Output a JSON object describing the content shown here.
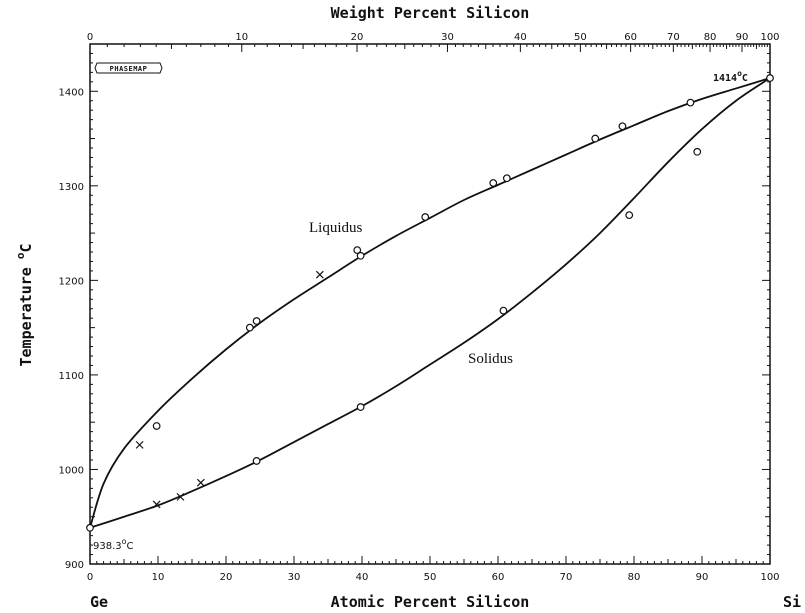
{
  "chart_data": {
    "type": "line",
    "top_axis": {
      "label": "Weight Percent Silicon",
      "ticks": [
        0,
        10,
        20,
        30,
        40,
        50,
        60,
        70,
        80,
        90,
        100
      ],
      "tick_labels": [
        "0",
        "10",
        "20",
        "30",
        "40",
        "50",
        "60",
        "70",
        "80",
        "90",
        "100"
      ]
    },
    "xlabel": "Atomic Percent Silicon",
    "xlim": [
      0,
      100
    ],
    "x_ticks": [
      0,
      10,
      20,
      30,
      40,
      50,
      60,
      70,
      80,
      90,
      100
    ],
    "x_tick_labels": [
      "0",
      "10",
      "20",
      "30",
      "40",
      "50",
      "60",
      "70",
      "80",
      "90",
      "100"
    ],
    "x_end_labels": {
      "left": "Ge",
      "right": "Si"
    },
    "ylabel": "Temperature",
    "ylabel_unit": "C",
    "ylabel_degree": "o",
    "ylim": [
      900,
      1450
    ],
    "y_ticks": [
      900,
      1000,
      1100,
      1200,
      1300,
      1400
    ],
    "y_tick_labels": [
      "900",
      "1000",
      "1100",
      "1200",
      "1300",
      "1400"
    ],
    "grid": false,
    "logo_text": "PHASEMAP",
    "series": [
      {
        "name": "Liquidus",
        "x": [
          0,
          2,
          5,
          10,
          15,
          20,
          25,
          30,
          35,
          40,
          45,
          50,
          55,
          60,
          65,
          70,
          75,
          80,
          85,
          90,
          95,
          100
        ],
        "y": [
          938.3,
          985,
          1022,
          1062,
          1096,
          1127,
          1155,
          1180,
          1203,
          1226,
          1247,
          1266,
          1285,
          1301,
          1317,
          1333,
          1349,
          1364,
          1379,
          1392,
          1403,
          1414
        ]
      },
      {
        "name": "Solidus",
        "x": [
          0,
          5,
          10,
          15,
          20,
          25,
          30,
          35,
          40,
          45,
          50,
          55,
          60,
          65,
          70,
          75,
          80,
          85,
          90,
          95,
          100
        ],
        "y": [
          938.3,
          950,
          962,
          977,
          993,
          1010,
          1029,
          1048,
          1067,
          1088,
          1111,
          1134,
          1159,
          1187,
          1217,
          1250,
          1287,
          1325,
          1360,
          1390,
          1414
        ]
      }
    ],
    "points": {
      "circles": [
        {
          "x": 0,
          "y": 938.3
        },
        {
          "x": 9.8,
          "y": 1046
        },
        {
          "x": 23.5,
          "y": 1150
        },
        {
          "x": 24.5,
          "y": 1157
        },
        {
          "x": 39.3,
          "y": 1232
        },
        {
          "x": 39.8,
          "y": 1226
        },
        {
          "x": 49.3,
          "y": 1267
        },
        {
          "x": 59.3,
          "y": 1303
        },
        {
          "x": 61.3,
          "y": 1308
        },
        {
          "x": 74.3,
          "y": 1350
        },
        {
          "x": 78.3,
          "y": 1363
        },
        {
          "x": 88.3,
          "y": 1388
        },
        {
          "x": 100,
          "y": 1414
        },
        {
          "x": 24.5,
          "y": 1009
        },
        {
          "x": 39.8,
          "y": 1066
        },
        {
          "x": 60.8,
          "y": 1168
        },
        {
          "x": 79.3,
          "y": 1269
        },
        {
          "x": 89.3,
          "y": 1336
        }
      ],
      "crosses": [
        {
          "x": 7.3,
          "y": 1026
        },
        {
          "x": 33.8,
          "y": 1206
        },
        {
          "x": 9.8,
          "y": 963
        },
        {
          "x": 13.3,
          "y": 971
        },
        {
          "x": 16.3,
          "y": 986
        }
      ]
    },
    "annotations": {
      "liquidus": "Liquidus",
      "solidus": "Solidus",
      "ge_melt": "938.3",
      "si_melt": "1414",
      "deg_sup": "o",
      "deg_unit": "C"
    }
  }
}
